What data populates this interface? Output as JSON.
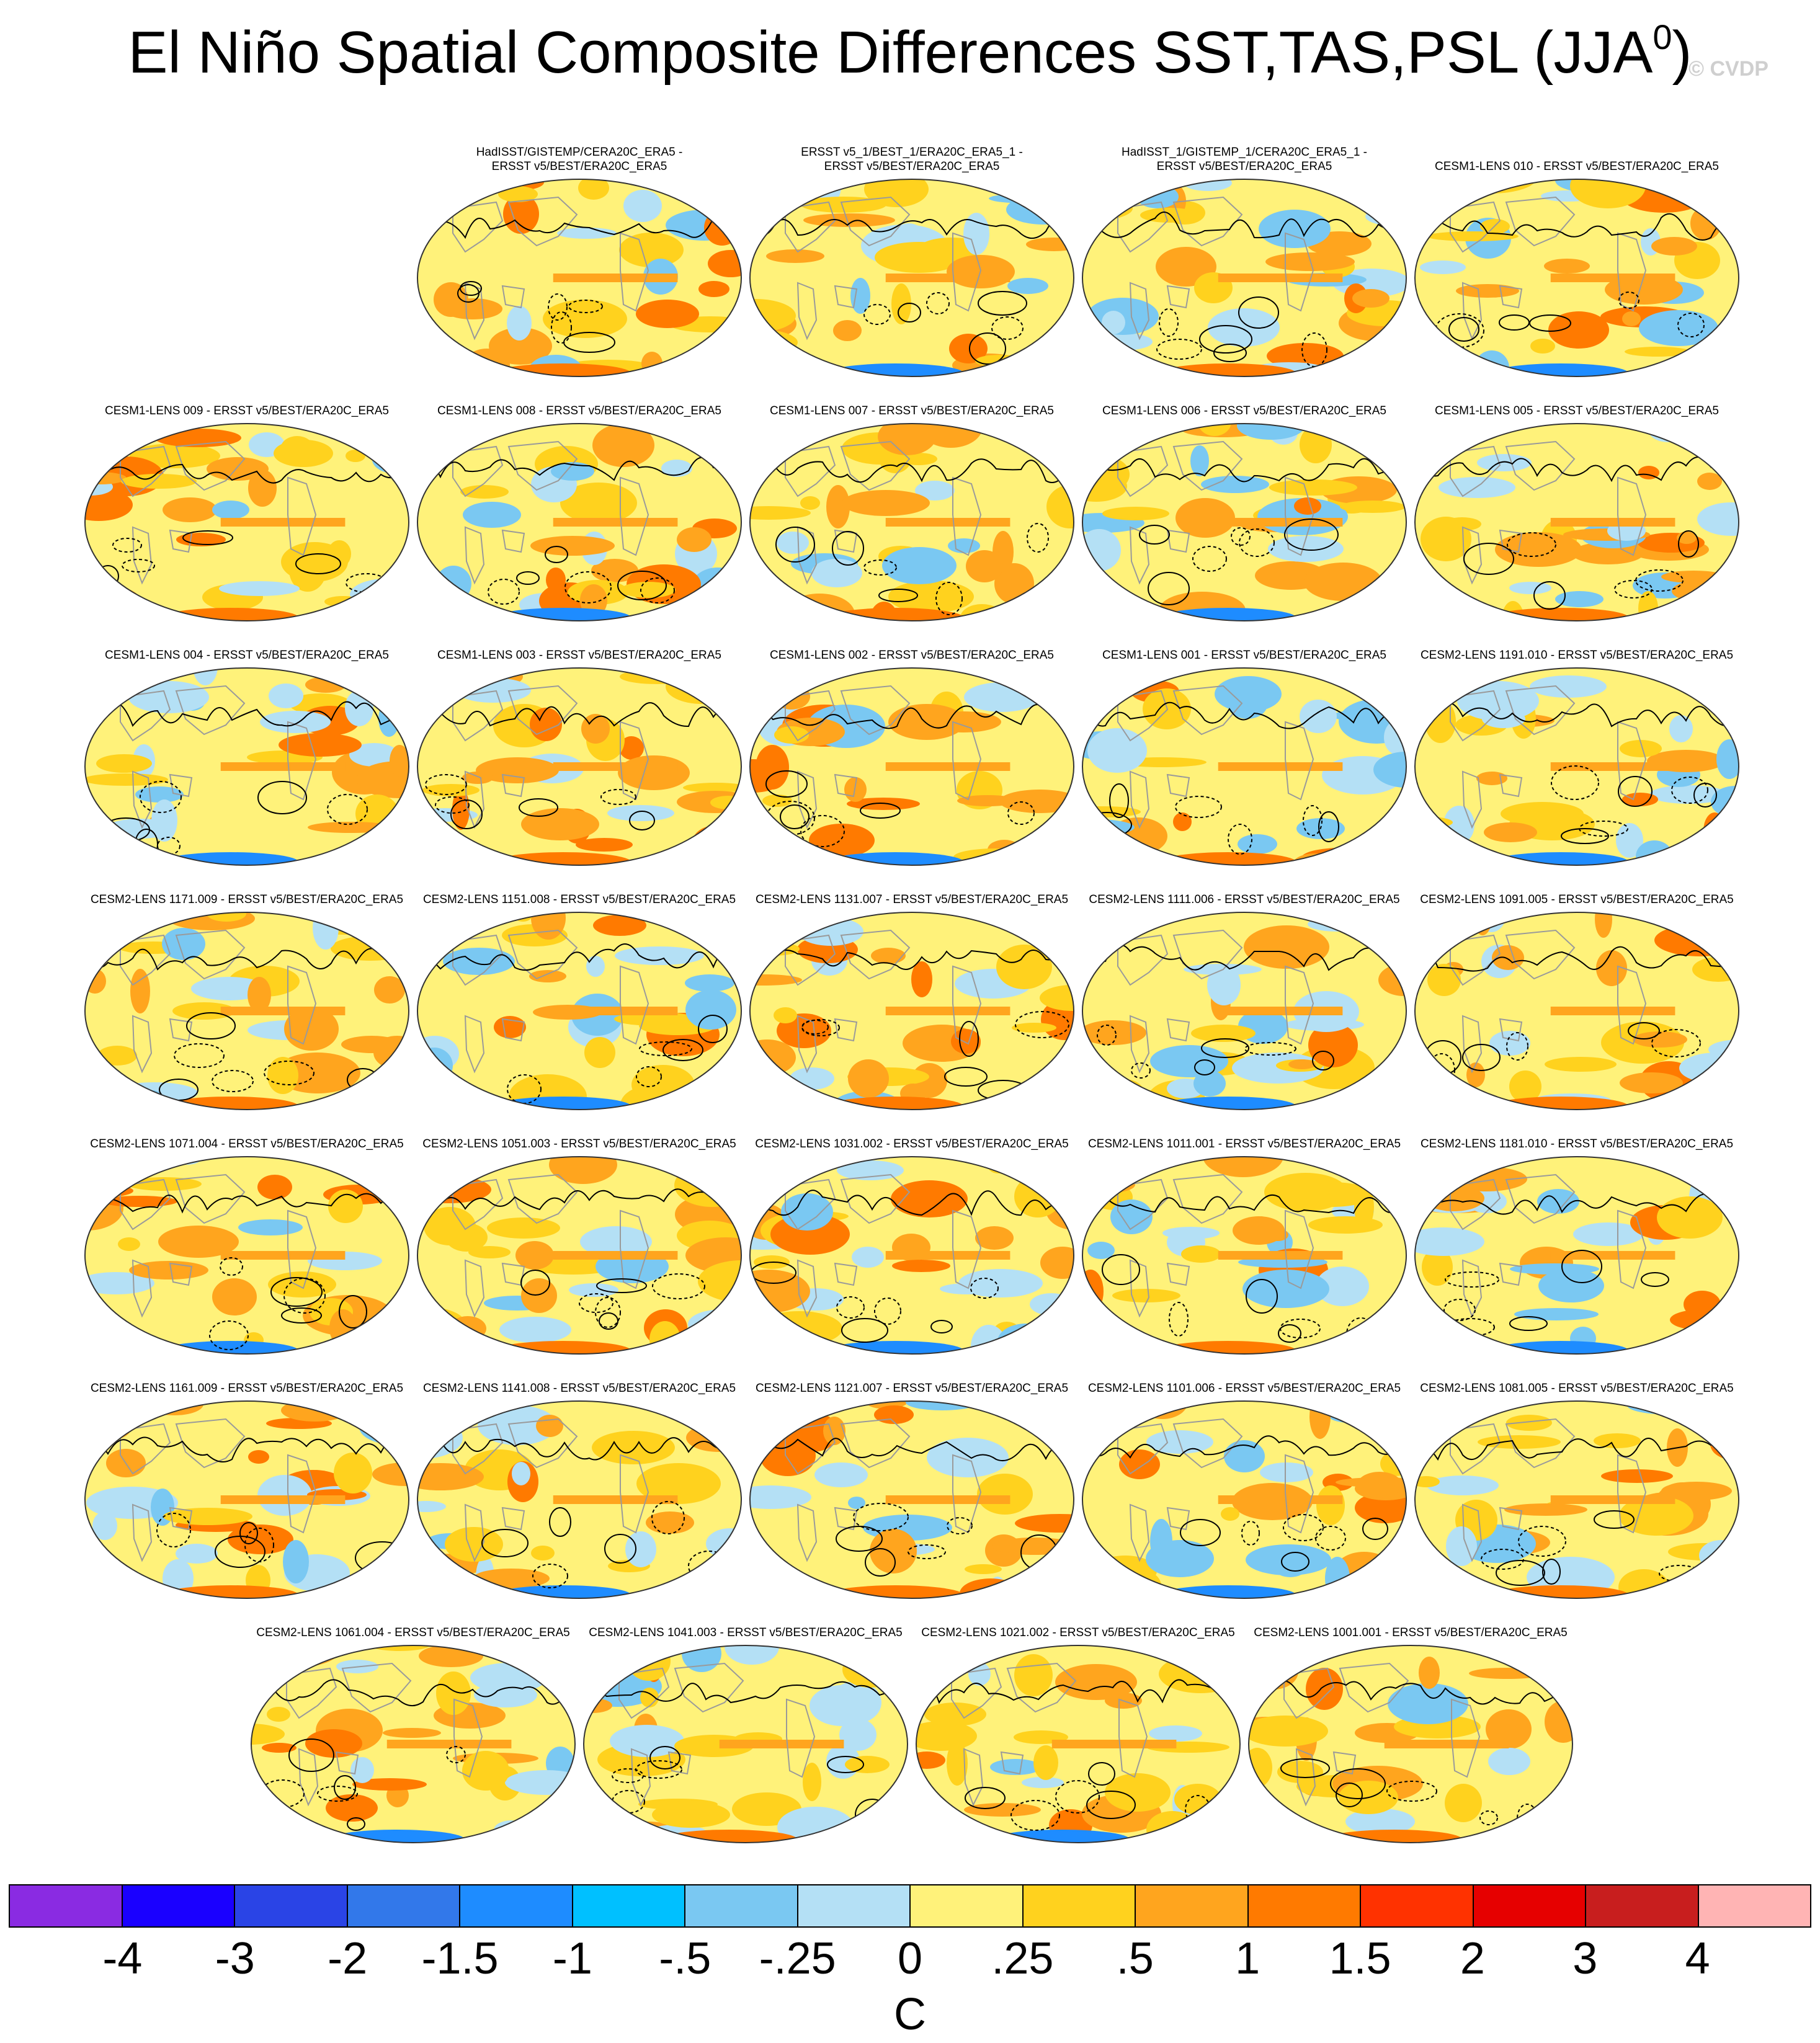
{
  "title": "El Niño Spatial Composite Differences SST,TAS,PSL (JJA",
  "title_superscript": "0",
  "title_close": ")",
  "watermark": "© CVDP",
  "panels": [
    "HadISST/GISTEMP/CERA20C_ERA5 -\nERSST v5/BEST/ERA20C_ERA5",
    "ERSST v5_1/BEST_1/ERA20C_ERA5_1 -\nERSST v5/BEST/ERA20C_ERA5",
    "HadISST_1/GISTEMP_1/CERA20C_ERA5_1 -\nERSST v5/BEST/ERA20C_ERA5",
    "CESM1-LENS 010 - ERSST v5/BEST/ERA20C_ERA5",
    "CESM1-LENS 009 - ERSST v5/BEST/ERA20C_ERA5",
    "CESM1-LENS 008 - ERSST v5/BEST/ERA20C_ERA5",
    "CESM1-LENS 007 - ERSST v5/BEST/ERA20C_ERA5",
    "CESM1-LENS 006 - ERSST v5/BEST/ERA20C_ERA5",
    "CESM1-LENS 005 - ERSST v5/BEST/ERA20C_ERA5",
    "CESM1-LENS 004 - ERSST v5/BEST/ERA20C_ERA5",
    "CESM1-LENS 003 - ERSST v5/BEST/ERA20C_ERA5",
    "CESM1-LENS 002 - ERSST v5/BEST/ERA20C_ERA5",
    "CESM1-LENS 001 - ERSST v5/BEST/ERA20C_ERA5",
    "CESM2-LENS 1191.010 - ERSST v5/BEST/ERA20C_ERA5",
    "CESM2-LENS 1171.009 - ERSST v5/BEST/ERA20C_ERA5",
    "CESM2-LENS 1151.008 - ERSST v5/BEST/ERA20C_ERA5",
    "CESM2-LENS 1131.007 - ERSST v5/BEST/ERA20C_ERA5",
    "CESM2-LENS 1111.006 - ERSST v5/BEST/ERA20C_ERA5",
    "CESM2-LENS 1091.005 - ERSST v5/BEST/ERA20C_ERA5",
    "CESM2-LENS 1071.004 - ERSST v5/BEST/ERA20C_ERA5",
    "CESM2-LENS 1051.003 - ERSST v5/BEST/ERA20C_ERA5",
    "CESM2-LENS 1031.002 - ERSST v5/BEST/ERA20C_ERA5",
    "CESM2-LENS 1011.001 - ERSST v5/BEST/ERA20C_ERA5",
    "CESM2-LENS 1181.010 - ERSST v5/BEST/ERA20C_ERA5",
    "CESM2-LENS 1161.009 - ERSST v5/BEST/ERA20C_ERA5",
    "CESM2-LENS 1141.008 - ERSST v5/BEST/ERA20C_ERA5",
    "CESM2-LENS 1121.007 - ERSST v5/BEST/ERA20C_ERA5",
    "CESM2-LENS 1101.006 - ERSST v5/BEST/ERA20C_ERA5",
    "CESM2-LENS 1081.005 - ERSST v5/BEST/ERA20C_ERA5",
    "CESM2-LENS 1061.004 - ERSST v5/BEST/ERA20C_ERA5",
    "CESM2-LENS 1041.003 - ERSST v5/BEST/ERA20C_ERA5",
    "CESM2-LENS 1021.002 - ERSST v5/BEST/ERA20C_ERA5",
    "CESM2-LENS 1001.001 - ERSST v5/BEST/ERA20C_ERA5"
  ],
  "colorbar": {
    "units": "C",
    "labels": [
      "-4",
      "-3",
      "-2",
      "-1.5",
      "-1",
      "-.5",
      "-.25",
      "0",
      ".25",
      ".5",
      "1",
      "1.5",
      "2",
      "3",
      "4"
    ],
    "colors": [
      "#8a2be2",
      "#1a00ff",
      "#2a44e6",
      "#3278ea",
      "#1e8cff",
      "#00c0ff",
      "#7ac8f2",
      "#b4e0f5",
      "#fff27a",
      "#ffd21e",
      "#ffa51e",
      "#ff7a00",
      "#ff3200",
      "#e60000",
      "#c81e1e",
      "#ffb4b4"
    ]
  },
  "map_palette": {
    "ocean_base": "#fff27a",
    "warm": "#ffd21e",
    "warmer": "#ffa51e",
    "hot": "#ff7a00",
    "cool": "#b4e0f5",
    "cooler": "#7ac8f2",
    "cold": "#1e8cff",
    "coast": "#9a9a9a"
  }
}
